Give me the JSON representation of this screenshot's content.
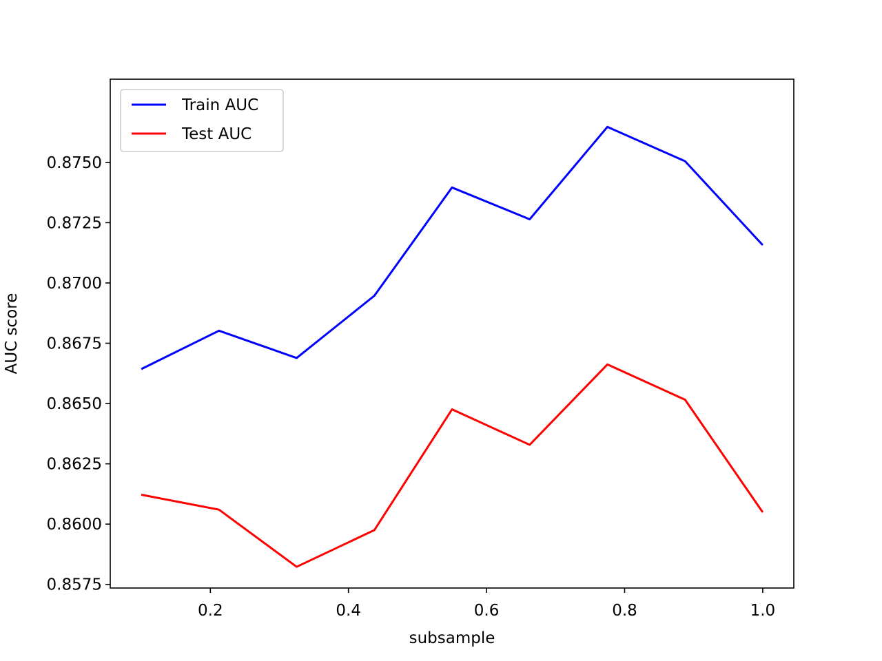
{
  "chart_data": {
    "type": "line",
    "title": "",
    "xlabel": "subsample",
    "ylabel": "AUC score",
    "xlim": [
      0.055,
      1.045
    ],
    "ylim": [
      0.85735,
      0.87845
    ],
    "x_ticks": [
      0.2,
      0.4,
      0.6,
      0.8,
      1.0
    ],
    "x_tick_labels": [
      "0.2",
      "0.4",
      "0.6",
      "0.8",
      "1.0"
    ],
    "y_ticks": [
      0.8575,
      0.86,
      0.8625,
      0.865,
      0.8675,
      0.87,
      0.8725,
      0.875
    ],
    "y_tick_labels": [
      "0.8575",
      "0.8600",
      "0.8625",
      "0.8650",
      "0.8675",
      "0.8700",
      "0.8725",
      "0.8750"
    ],
    "grid": false,
    "legend_position": "top-left",
    "x": [
      0.1,
      0.2125,
      0.325,
      0.4375,
      0.55,
      0.6625,
      0.775,
      0.8875,
      1.0
    ],
    "series": [
      {
        "name": "Train AUC",
        "color": "#0000ff",
        "values": [
          0.86643,
          0.86802,
          0.86689,
          0.86947,
          0.87396,
          0.87264,
          0.87647,
          0.87505,
          0.87157
        ]
      },
      {
        "name": "Test AUC",
        "color": "#ff0000",
        "values": [
          0.86122,
          0.8606,
          0.85823,
          0.85975,
          0.86476,
          0.86329,
          0.86662,
          0.86516,
          0.86049
        ]
      }
    ]
  }
}
